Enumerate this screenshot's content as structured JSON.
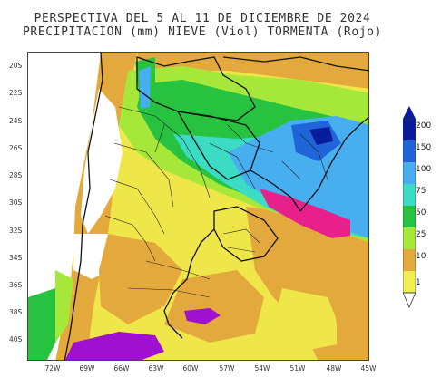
{
  "title": {
    "line1": "PERSPECTIVA DEL 5 AL 11 DE DICIEMBRE DE 2024",
    "line2": "PRECIPITACION (mm) NIEVE (Viol) TORMENTA (Rojo)"
  },
  "y_axis_labels": [
    "20S",
    "22S",
    "24S",
    "26S",
    "28S",
    "30S",
    "32S",
    "34S",
    "36S",
    "38S",
    "40S"
  ],
  "x_axis_labels": [
    "72W",
    "69W",
    "66W",
    "63W",
    "60W",
    "57W",
    "54W",
    "51W",
    "48W",
    "45W"
  ],
  "legend": {
    "values": [
      "200",
      "150",
      "100",
      "75",
      "50",
      "25",
      "10",
      "1"
    ],
    "colors": [
      "#0a1c9e",
      "#1f64d8",
      "#47aef0",
      "#3cdcc4",
      "#26c240",
      "#a6e83a",
      "#e3a93c",
      "#f0ee52",
      "#ffffff"
    ]
  },
  "map_colors": {
    "yellow": "#efe64a",
    "orange": "#e3a93c",
    "lightgreen": "#a6e83a",
    "green": "#26c240",
    "cyan": "#3cdcc4",
    "lightblue": "#47aef0",
    "blue": "#1f64d8",
    "darkblue": "#0a1c9e",
    "storm": "#e8208c",
    "snow": "#a010d0",
    "ocean": "#ffffff"
  }
}
